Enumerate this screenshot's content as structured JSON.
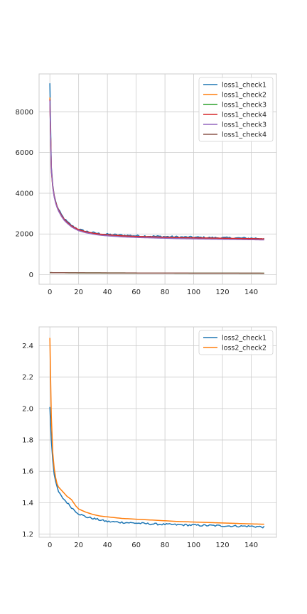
{
  "chart_data": [
    {
      "type": "line",
      "title": "",
      "xlabel": "",
      "ylabel": "",
      "xlim": [
        -7.5,
        157.5
      ],
      "ylim": [
        -470,
        9860
      ],
      "xticks": [
        0,
        20,
        40,
        60,
        80,
        100,
        120,
        140
      ],
      "yticks": [
        0,
        2000,
        4000,
        6000,
        8000
      ],
      "grid": true,
      "legend": "top-right",
      "series": [
        {
          "name": "loss1_check1",
          "color": "#1f77b4",
          "noise": 45,
          "x": [
            0,
            1,
            2,
            3,
            4,
            5,
            6,
            8,
            10,
            12,
            15,
            18,
            20,
            25,
            30,
            35,
            40,
            50,
            60,
            70,
            80,
            90,
            100,
            110,
            120,
            130,
            140,
            149
          ],
          "y": [
            9400,
            5300,
            4400,
            3900,
            3600,
            3380,
            3200,
            2950,
            2750,
            2600,
            2420,
            2300,
            2230,
            2130,
            2060,
            2010,
            1980,
            1940,
            1910,
            1890,
            1870,
            1850,
            1840,
            1820,
            1810,
            1800,
            1790,
            1780
          ]
        },
        {
          "name": "loss1_check2",
          "color": "#ff7f0e",
          "noise": 0,
          "x": [
            0,
            1,
            2,
            3,
            4,
            5,
            6,
            8,
            10,
            12,
            15,
            18,
            20,
            25,
            30,
            35,
            40,
            50,
            60,
            70,
            80,
            90,
            100,
            110,
            120,
            130,
            140,
            149
          ],
          "y": [
            8700,
            5100,
            4300,
            3850,
            3550,
            3330,
            3160,
            2900,
            2700,
            2560,
            2380,
            2260,
            2200,
            2100,
            2030,
            1980,
            1950,
            1900,
            1870,
            1850,
            1830,
            1810,
            1800,
            1790,
            1780,
            1770,
            1760,
            1750
          ]
        },
        {
          "name": "loss1_check3",
          "color": "#2ca02c",
          "noise": 0,
          "x": [
            0,
            20,
            40,
            60,
            80,
            100,
            120,
            149
          ],
          "y": [
            100,
            90,
            85,
            80,
            78,
            76,
            74,
            72
          ]
        },
        {
          "name": "loss1_check4",
          "color": "#d62728",
          "noise": 0,
          "x": [
            0,
            1,
            2,
            3,
            4,
            5,
            6,
            8,
            10,
            12,
            15,
            18,
            20,
            25,
            30,
            35,
            40,
            50,
            60,
            70,
            80,
            90,
            100,
            110,
            120,
            130,
            140,
            149
          ],
          "y": [
            8600,
            5200,
            4350,
            3870,
            3570,
            3350,
            3180,
            2920,
            2720,
            2580,
            2400,
            2280,
            2210,
            2110,
            2040,
            1990,
            1960,
            1910,
            1880,
            1860,
            1840,
            1820,
            1810,
            1800,
            1790,
            1780,
            1770,
            1760
          ]
        },
        {
          "name": "loss1_check3",
          "color": "#9467bd",
          "noise": 0,
          "x": [
            0,
            1,
            2,
            3,
            4,
            5,
            6,
            8,
            10,
            12,
            15,
            18,
            20,
            25,
            30,
            35,
            40,
            50,
            60,
            70,
            80,
            90,
            100,
            110,
            120,
            130,
            140,
            149
          ],
          "y": [
            8550,
            5150,
            4300,
            3820,
            3520,
            3300,
            3130,
            2870,
            2670,
            2530,
            2350,
            2230,
            2160,
            2060,
            1990,
            1940,
            1910,
            1860,
            1830,
            1810,
            1790,
            1770,
            1760,
            1750,
            1740,
            1730,
            1720,
            1710
          ]
        },
        {
          "name": "loss1_check4",
          "color": "#8c564b",
          "noise": 0,
          "x": [
            0,
            20,
            40,
            60,
            80,
            100,
            120,
            149
          ],
          "y": [
            100,
            92,
            86,
            82,
            79,
            77,
            75,
            73
          ]
        }
      ]
    },
    {
      "type": "line",
      "title": "",
      "xlabel": "",
      "ylabel": "",
      "xlim": [
        -7.5,
        157.5
      ],
      "ylim": [
        1.18,
        2.52
      ],
      "xticks": [
        0,
        20,
        40,
        60,
        80,
        100,
        120,
        140
      ],
      "yticks": [
        1.2,
        1.4,
        1.6,
        1.8,
        2.0,
        2.2,
        2.4
      ],
      "grid": true,
      "legend": "top-right",
      "series": [
        {
          "name": "loss2_check1",
          "color": "#1f77b4",
          "noise": 0.006,
          "x": [
            0,
            1,
            2,
            3,
            4,
            5,
            6,
            8,
            10,
            12,
            15,
            18,
            20,
            25,
            30,
            35,
            40,
            50,
            60,
            70,
            80,
            90,
            100,
            110,
            120,
            130,
            140,
            149
          ],
          "y": [
            2.01,
            1.8,
            1.67,
            1.58,
            1.53,
            1.5,
            1.47,
            1.44,
            1.42,
            1.4,
            1.37,
            1.345,
            1.33,
            1.31,
            1.3,
            1.29,
            1.28,
            1.275,
            1.27,
            1.265,
            1.262,
            1.259,
            1.257,
            1.255,
            1.253,
            1.251,
            1.25,
            1.245
          ]
        },
        {
          "name": "loss2_check2",
          "color": "#ff7f0e",
          "noise": 0,
          "x": [
            0,
            1,
            2,
            3,
            4,
            5,
            6,
            8,
            10,
            12,
            15,
            18,
            20,
            25,
            30,
            35,
            40,
            50,
            60,
            70,
            80,
            90,
            100,
            110,
            120,
            130,
            140,
            149
          ],
          "y": [
            2.45,
            1.95,
            1.72,
            1.62,
            1.56,
            1.52,
            1.5,
            1.48,
            1.46,
            1.44,
            1.42,
            1.38,
            1.36,
            1.34,
            1.325,
            1.315,
            1.31,
            1.3,
            1.295,
            1.29,
            1.285,
            1.28,
            1.277,
            1.274,
            1.271,
            1.268,
            1.265,
            1.263
          ]
        }
      ]
    }
  ]
}
